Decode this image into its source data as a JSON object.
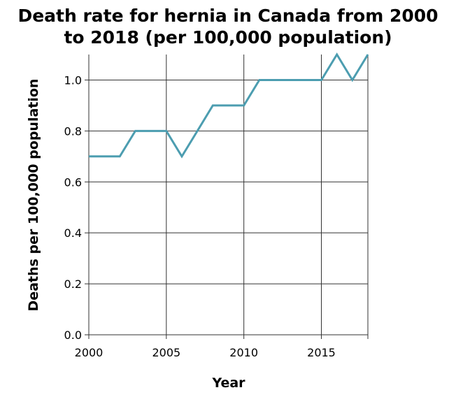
{
  "chart_data": {
    "type": "line",
    "title_lines": [
      "Death rate for hernia in Canada from 2000",
      "to 2018 (per 100,000 population)"
    ],
    "xlabel": "Year",
    "ylabel": "Deaths per 100,000 population",
    "x": [
      2000,
      2001,
      2002,
      2003,
      2004,
      2005,
      2006,
      2007,
      2008,
      2009,
      2010,
      2011,
      2012,
      2013,
      2014,
      2015,
      2016,
      2017,
      2018
    ],
    "series": [
      {
        "values": [
          0.7,
          0.7,
          0.7,
          0.8,
          0.8,
          0.8,
          0.7,
          0.8,
          0.9,
          0.9,
          0.9,
          1.0,
          1.0,
          1.0,
          1.0,
          1.0,
          1.1,
          1.0,
          1.1
        ]
      }
    ],
    "xlim": [
      2000,
      2018
    ],
    "ylim": [
      0,
      1.1
    ],
    "xticks": [
      2000,
      2005,
      2010,
      2015
    ],
    "xtick_labels": [
      "2000",
      "2005",
      "2010",
      "2015"
    ],
    "yticks": [
      0,
      0.2,
      0.4,
      0.6,
      0.8,
      1.0
    ],
    "ytick_labels": [
      "0.0",
      "0.2",
      "0.4",
      "0.6",
      "0.8",
      "1.0"
    ],
    "grid": true,
    "line_color": "#4c9db0"
  }
}
